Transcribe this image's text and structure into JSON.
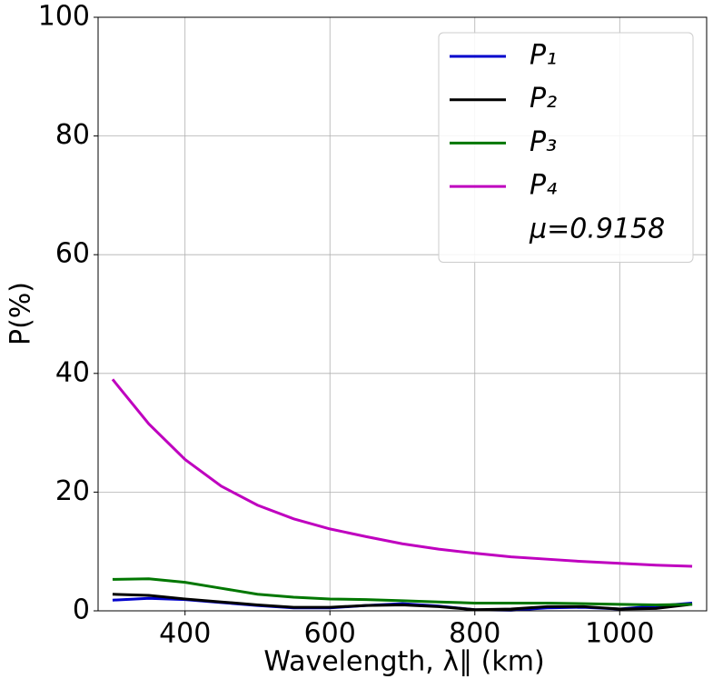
{
  "chart_data": {
    "type": "line",
    "xlabel": "Wavelength, λ∥ (km)",
    "ylabel": "P(%)",
    "x": [
      300,
      350,
      400,
      450,
      500,
      550,
      600,
      650,
      700,
      750,
      800,
      850,
      900,
      950,
      1000,
      1050,
      1100
    ],
    "series": [
      {
        "name": "P₁",
        "color": "#0000cc",
        "values": [
          1.8,
          2.1,
          1.9,
          1.4,
          0.9,
          0.5,
          0.5,
          0.9,
          1.2,
          0.8,
          0.2,
          0.1,
          0.5,
          0.6,
          0.3,
          0.8,
          1.3
        ]
      },
      {
        "name": "P₂",
        "color": "#000000",
        "values": [
          2.8,
          2.6,
          2.0,
          1.5,
          1.0,
          0.6,
          0.6,
          0.9,
          1.0,
          0.7,
          0.2,
          0.3,
          0.7,
          0.7,
          0.3,
          0.4,
          1.1
        ]
      },
      {
        "name": "P₃",
        "color": "#007700",
        "values": [
          5.3,
          5.4,
          4.8,
          3.8,
          2.8,
          2.3,
          2.0,
          1.9,
          1.7,
          1.5,
          1.3,
          1.3,
          1.3,
          1.2,
          1.1,
          1.0,
          1.1
        ]
      },
      {
        "name": "P₄",
        "color": "#bf00bf",
        "values": [
          39,
          31.5,
          25.5,
          21,
          17.8,
          15.5,
          13.8,
          12.5,
          11.3,
          10.4,
          9.7,
          9.1,
          8.7,
          8.3,
          8.0,
          7.7,
          7.5
        ]
      }
    ],
    "legend_note": "μ=0.9158",
    "legend_position": "upper right",
    "xlim": [
      280,
      1120
    ],
    "xticks": [
      400,
      600,
      800,
      1000
    ],
    "ylim": [
      0,
      100
    ],
    "yticks": [
      0,
      20,
      40,
      60,
      80,
      100
    ],
    "grid": true
  }
}
